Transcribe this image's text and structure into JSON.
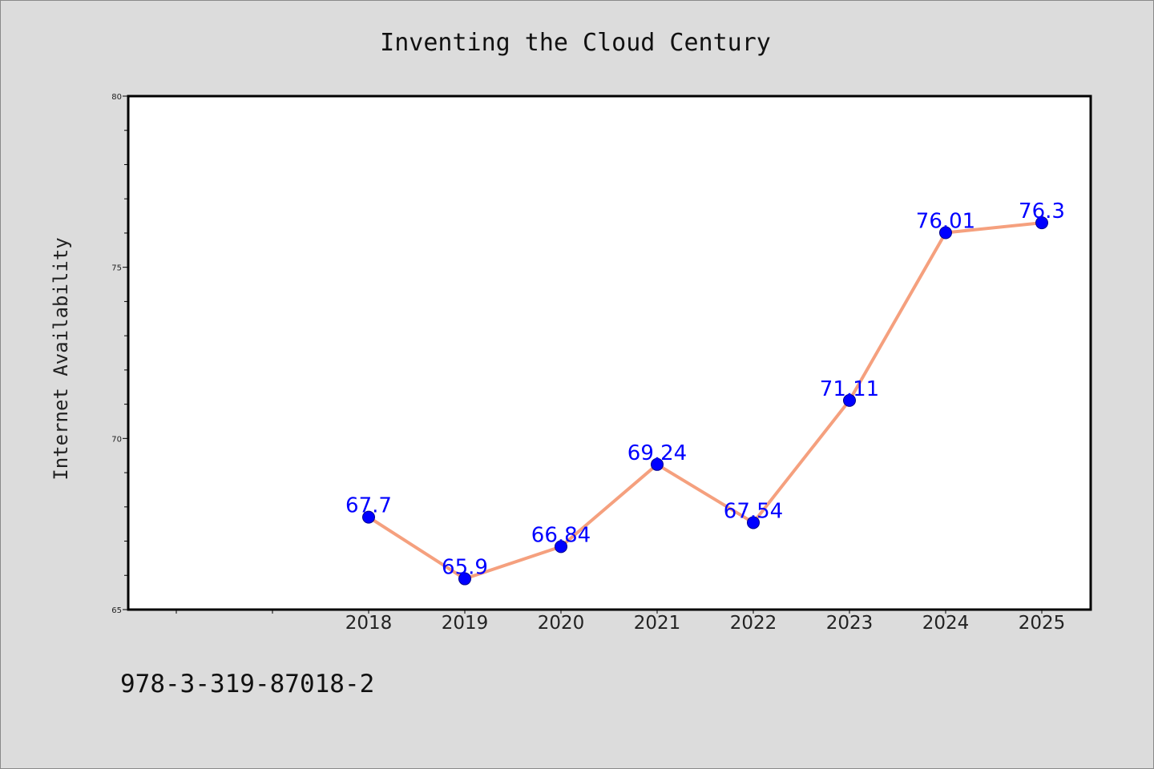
{
  "chart_data": {
    "type": "line",
    "title": "Inventing the Cloud Century",
    "ylabel": "Internet Availability",
    "xlabel": "",
    "categories": [
      "2018",
      "2019",
      "2020",
      "2021",
      "2022",
      "2023",
      "2024",
      "2025"
    ],
    "series": [
      {
        "values": [
          67.7,
          65.9,
          66.84,
          69.24,
          67.54,
          71.11,
          76.01,
          76.3
        ],
        "value_labels": [
          "67.7",
          "65.9",
          "66.84",
          "69.24",
          "67.54",
          "71.11",
          "76.01",
          "76.3"
        ],
        "line_color": "#f5a07e",
        "marker_color": "#0000ff"
      }
    ],
    "ylim": [
      65,
      80
    ],
    "yticks": [
      "65",
      "70",
      "75",
      "80"
    ],
    "grid": false,
    "legend": "none"
  },
  "footnote": "978-3-319-87018-2",
  "colors": {
    "background": "#dcdcdc",
    "plot_background": "#ffffff",
    "label_color": "#0000ff"
  }
}
